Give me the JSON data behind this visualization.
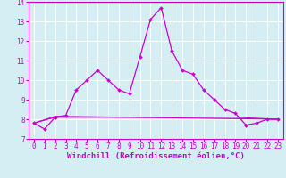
{
  "xlabel": "Windchill (Refroidissement éolien,°C)",
  "ylabel": "",
  "bg_color": "#d4eef4",
  "grid_color": "#ffffff",
  "line_color": "#cc00cc",
  "marker": "D",
  "marker_size": 2.0,
  "xlim": [
    -0.5,
    23.5
  ],
  "ylim": [
    7,
    14
  ],
  "yticks": [
    7,
    8,
    9,
    10,
    11,
    12,
    13,
    14
  ],
  "xticks": [
    0,
    1,
    2,
    3,
    4,
    5,
    6,
    7,
    8,
    9,
    10,
    11,
    12,
    13,
    14,
    15,
    16,
    17,
    18,
    19,
    20,
    21,
    22,
    23
  ],
  "series": [
    {
      "x": [
        0,
        1,
        2,
        3,
        4,
        5,
        6,
        7,
        8,
        9,
        10,
        11,
        12,
        13,
        14,
        15,
        16,
        17,
        18,
        19,
        20,
        21,
        22,
        23
      ],
      "y": [
        7.8,
        7.5,
        8.1,
        8.2,
        9.5,
        10.0,
        10.5,
        10.0,
        9.5,
        9.3,
        11.2,
        13.1,
        13.7,
        11.5,
        10.5,
        10.3,
        9.5,
        9.0,
        8.5,
        8.3,
        7.7,
        7.8,
        8.0,
        8.0
      ],
      "has_marker": true
    },
    {
      "x": [
        0,
        2,
        23
      ],
      "y": [
        7.8,
        8.15,
        8.0
      ],
      "has_marker": false
    },
    {
      "x": [
        0,
        2,
        19,
        23
      ],
      "y": [
        7.8,
        8.1,
        8.1,
        8.0
      ],
      "has_marker": false
    }
  ],
  "title_fontsize": 6,
  "tick_fontsize": 5.5,
  "xlabel_fontsize": 6.5
}
